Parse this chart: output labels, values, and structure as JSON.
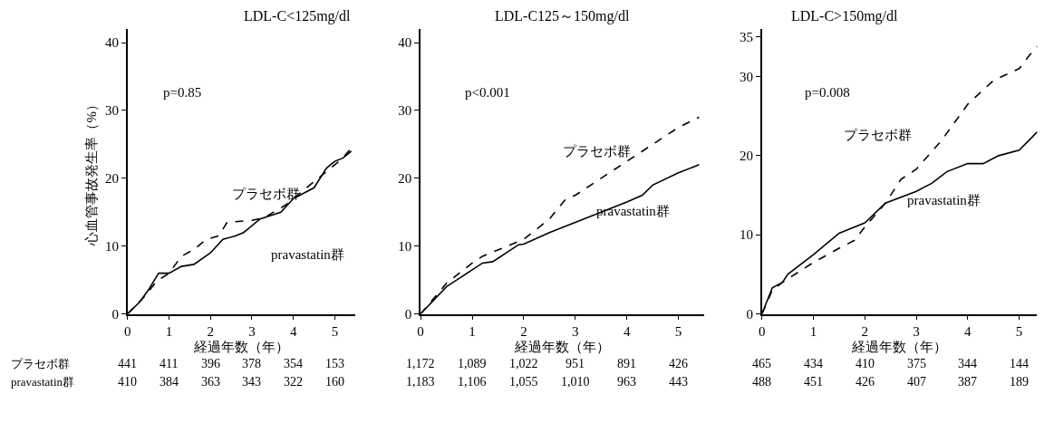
{
  "chart_data": [
    {
      "type": "line",
      "title": "LDL-C<125mg/dl",
      "xlabel": "経過年数（年）",
      "ylabel": "心血管事故発生率（%）",
      "xlim": [
        0,
        5.5
      ],
      "ylim": [
        0,
        42
      ],
      "xticks": [
        0,
        1,
        2,
        3,
        4,
        5
      ],
      "yticks": [
        0,
        10,
        20,
        30,
        40
      ],
      "marker": "none",
      "series": [
        {
          "name": "プラセボ群",
          "color": "#000000",
          "line_style": "dashed",
          "x": [
            0,
            0.4,
            0.7,
            1,
            1.3,
            1.6,
            1.9,
            2.2,
            2.4,
            3,
            3.3,
            3.8,
            4.2,
            4.6,
            4.9,
            5.2,
            5.4
          ],
          "values": [
            0,
            2.5,
            4.8,
            6,
            8.5,
            9.5,
            11,
            11.5,
            13.5,
            13.8,
            14.2,
            16,
            18,
            20,
            21.5,
            23,
            24.5
          ]
        },
        {
          "name": "pravastatin群",
          "color": "#000000",
          "line_style": "solid",
          "x": [
            0,
            0.3,
            0.5,
            0.75,
            1,
            1.3,
            1.6,
            2,
            2.3,
            2.6,
            2.8,
            3.2,
            3.7,
            4,
            4.5,
            4.8,
            5,
            5.2,
            5.4
          ],
          "values": [
            0,
            1.8,
            3.5,
            6,
            6,
            7,
            7.3,
            9,
            11,
            11.5,
            12,
            14,
            15,
            17,
            18.6,
            21.5,
            22.5,
            23,
            24
          ]
        }
      ],
      "annotations": [
        "p=0.85",
        "プラセボ群",
        "pravastatin群",
        "441",
        "411",
        "396",
        "378",
        "354",
        "153",
        "410",
        "384",
        "363",
        "343",
        "322",
        "160"
      ]
    },
    {
      "type": "line",
      "title": "LDL-C125～150mg/dl",
      "xlabel": "経過年数（年）",
      "xlim": [
        0,
        5.5
      ],
      "ylim": [
        0,
        42
      ],
      "xticks": [
        0,
        1,
        2,
        3,
        4,
        5
      ],
      "yticks": [
        0,
        10,
        20,
        30,
        40
      ],
      "marker": "none",
      "series": [
        {
          "name": "プラセボ群",
          "color": "#000000",
          "line_style": "dashed",
          "x": [
            0,
            0.5,
            1,
            1.2,
            2,
            2.5,
            2.8,
            3,
            4,
            5,
            5.4
          ],
          "values": [
            0,
            4.5,
            7.5,
            8.5,
            11,
            14,
            16.8,
            17.5,
            22.5,
            27.5,
            29
          ]
        },
        {
          "name": "pravastatin群",
          "color": "#000000",
          "line_style": "solid",
          "x": [
            0,
            0.5,
            1,
            1.2,
            1.4,
            1.9,
            2,
            2.5,
            3,
            3.5,
            4,
            4.3,
            4.5,
            5,
            5.4
          ],
          "values": [
            0,
            4,
            6.5,
            7.5,
            7.7,
            10.2,
            10.3,
            12,
            13.5,
            15,
            16.5,
            17.5,
            19,
            20.8,
            22
          ]
        }
      ],
      "annotations": [
        "p<0.001",
        "1,172",
        "1,089",
        "1,022",
        "951",
        "891",
        "426",
        "1,183",
        "1,106",
        "1,055",
        "1,010",
        "963",
        "443"
      ]
    },
    {
      "type": "line",
      "title": "LDL-C>150mg/dl",
      "xlabel": "経過年数（年）",
      "xlim": [
        0,
        5.35
      ],
      "ylim": [
        0,
        36
      ],
      "xticks": [
        0,
        1,
        2,
        3,
        4,
        5
      ],
      "yticks": [
        0,
        10,
        20,
        30,
        35
      ],
      "marker": "none",
      "series": [
        {
          "name": "プラセボ群",
          "color": "#000000",
          "line_style": "dashed",
          "x": [
            0,
            0.2,
            0.4,
            1,
            1.5,
            1.8,
            2,
            2.4,
            2.7,
            3,
            3.5,
            4,
            4.5,
            5,
            5.2,
            5.35
          ],
          "values": [
            0,
            3,
            4,
            6.5,
            8.3,
            9.3,
            11,
            14,
            17,
            18.3,
            22,
            26.5,
            29.5,
            31,
            32.7,
            33.8
          ]
        },
        {
          "name": "pravastatin群",
          "color": "#000000",
          "line_style": "solid",
          "x": [
            0,
            0.2,
            0.4,
            0.5,
            1,
            1.5,
            2,
            2.4,
            3,
            3.3,
            3.6,
            4,
            4.3,
            4.6,
            5,
            5.2,
            5.35
          ],
          "values": [
            0,
            3.3,
            4,
            5,
            7.5,
            10.2,
            11.5,
            14,
            15.5,
            16.5,
            18,
            19,
            19,
            20,
            20.7,
            22,
            23
          ]
        }
      ],
      "annotations": [
        "p=0.008",
        "465",
        "434",
        "410",
        "375",
        "344",
        "144",
        "488",
        "451",
        "426",
        "407",
        "387",
        "189"
      ]
    }
  ]
}
